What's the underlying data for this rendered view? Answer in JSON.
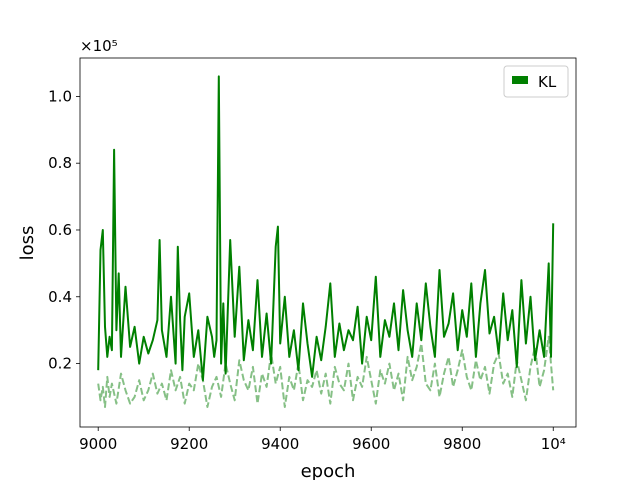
{
  "chart_data": {
    "type": "line",
    "xlabel": "epoch",
    "ylabel": "loss",
    "y_multiplier": "×10⁵",
    "xlim": [
      8960,
      10050
    ],
    "ylim": [
      0.01,
      1.115
    ],
    "x_ticks": [
      {
        "value": 9000,
        "label": "9000"
      },
      {
        "value": 9200,
        "label": "9200"
      },
      {
        "value": 9400,
        "label": "9400"
      },
      {
        "value": 9600,
        "label": "9600"
      },
      {
        "value": 9800,
        "label": "9800"
      },
      {
        "value": 10000,
        "label": "10⁴"
      }
    ],
    "y_ticks": [
      {
        "value": 0.2,
        "label": "0.2"
      },
      {
        "value": 0.4,
        "label": "0.4"
      },
      {
        "value": 0.6,
        "label": "0.6"
      },
      {
        "value": 0.8,
        "label": "0.8"
      },
      {
        "value": 1.0,
        "label": "1.0"
      }
    ],
    "legend": {
      "position": "top-right",
      "entries": [
        "KL"
      ]
    },
    "colors": {
      "primary": "#008000",
      "secondary": "#86c086"
    },
    "series": [
      {
        "name": "KL",
        "style": "solid",
        "x": [
          9000,
          9005,
          9010,
          9015,
          9020,
          9025,
          9030,
          9035,
          9040,
          9045,
          9050,
          9060,
          9070,
          9080,
          9090,
          9100,
          9110,
          9120,
          9130,
          9135,
          9140,
          9150,
          9160,
          9170,
          9175,
          9180,
          9185,
          9190,
          9200,
          9210,
          9220,
          9230,
          9240,
          9250,
          9255,
          9260,
          9265,
          9270,
          9275,
          9280,
          9290,
          9300,
          9310,
          9320,
          9330,
          9340,
          9350,
          9360,
          9370,
          9380,
          9390,
          9395,
          9400,
          9410,
          9420,
          9430,
          9440,
          9450,
          9460,
          9470,
          9480,
          9490,
          9500,
          9510,
          9520,
          9530,
          9540,
          9550,
          9560,
          9570,
          9580,
          9590,
          9600,
          9610,
          9620,
          9630,
          9640,
          9650,
          9660,
          9670,
          9680,
          9690,
          9700,
          9710,
          9720,
          9730,
          9740,
          9750,
          9760,
          9770,
          9780,
          9790,
          9800,
          9810,
          9820,
          9830,
          9840,
          9850,
          9860,
          9870,
          9880,
          9890,
          9900,
          9910,
          9920,
          9930,
          9940,
          9950,
          9960,
          9970,
          9980,
          9990,
          9995,
          10000
        ],
        "y": [
          0.18,
          0.54,
          0.6,
          0.31,
          0.22,
          0.28,
          0.24,
          0.84,
          0.3,
          0.47,
          0.22,
          0.43,
          0.25,
          0.31,
          0.2,
          0.28,
          0.23,
          0.27,
          0.33,
          0.57,
          0.3,
          0.22,
          0.4,
          0.2,
          0.55,
          0.33,
          0.18,
          0.34,
          0.41,
          0.22,
          0.3,
          0.15,
          0.34,
          0.28,
          0.22,
          0.27,
          1.06,
          0.2,
          0.38,
          0.17,
          0.57,
          0.28,
          0.49,
          0.21,
          0.33,
          0.24,
          0.45,
          0.22,
          0.35,
          0.2,
          0.55,
          0.61,
          0.26,
          0.4,
          0.22,
          0.3,
          0.18,
          0.38,
          0.26,
          0.16,
          0.28,
          0.21,
          0.31,
          0.44,
          0.22,
          0.32,
          0.24,
          0.3,
          0.27,
          0.37,
          0.2,
          0.34,
          0.27,
          0.46,
          0.22,
          0.33,
          0.28,
          0.38,
          0.24,
          0.42,
          0.3,
          0.22,
          0.38,
          0.27,
          0.44,
          0.31,
          0.22,
          0.48,
          0.28,
          0.32,
          0.41,
          0.24,
          0.36,
          0.28,
          0.44,
          0.22,
          0.38,
          0.48,
          0.29,
          0.34,
          0.23,
          0.41,
          0.27,
          0.36,
          0.19,
          0.45,
          0.26,
          0.4,
          0.21,
          0.3,
          0.22,
          0.5,
          0.22,
          0.62
        ]
      },
      {
        "name": "",
        "style": "dashed",
        "x": [
          9000,
          9005,
          9010,
          9015,
          9020,
          9025,
          9030,
          9040,
          9050,
          9060,
          9070,
          9080,
          9090,
          9100,
          9110,
          9120,
          9130,
          9140,
          9150,
          9160,
          9170,
          9180,
          9190,
          9200,
          9210,
          9220,
          9230,
          9240,
          9250,
          9260,
          9270,
          9280,
          9290,
          9300,
          9310,
          9320,
          9330,
          9340,
          9350,
          9360,
          9370,
          9380,
          9390,
          9400,
          9410,
          9420,
          9430,
          9440,
          9450,
          9460,
          9470,
          9480,
          9490,
          9500,
          9510,
          9520,
          9530,
          9540,
          9550,
          9560,
          9570,
          9580,
          9590,
          9600,
          9610,
          9620,
          9630,
          9640,
          9650,
          9660,
          9670,
          9680,
          9690,
          9700,
          9710,
          9720,
          9730,
          9740,
          9750,
          9760,
          9770,
          9780,
          9790,
          9800,
          9810,
          9820,
          9830,
          9840,
          9850,
          9860,
          9870,
          9880,
          9890,
          9900,
          9910,
          9920,
          9930,
          9940,
          9950,
          9960,
          9970,
          9980,
          9990,
          10000
        ],
        "y": [
          0.14,
          0.09,
          0.13,
          0.07,
          0.16,
          0.1,
          0.14,
          0.08,
          0.17,
          0.12,
          0.08,
          0.1,
          0.15,
          0.09,
          0.12,
          0.17,
          0.11,
          0.14,
          0.09,
          0.18,
          0.12,
          0.16,
          0.08,
          0.14,
          0.12,
          0.2,
          0.15,
          0.07,
          0.13,
          0.16,
          0.1,
          0.2,
          0.14,
          0.09,
          0.21,
          0.15,
          0.12,
          0.19,
          0.08,
          0.17,
          0.13,
          0.23,
          0.14,
          0.19,
          0.07,
          0.16,
          0.12,
          0.2,
          0.09,
          0.15,
          0.13,
          0.18,
          0.11,
          0.17,
          0.08,
          0.19,
          0.14,
          0.12,
          0.2,
          0.09,
          0.16,
          0.13,
          0.22,
          0.15,
          0.08,
          0.18,
          0.14,
          0.2,
          0.12,
          0.17,
          0.09,
          0.22,
          0.15,
          0.19,
          0.26,
          0.14,
          0.12,
          0.2,
          0.1,
          0.17,
          0.22,
          0.13,
          0.18,
          0.24,
          0.16,
          0.12,
          0.21,
          0.15,
          0.19,
          0.11,
          0.2,
          0.23,
          0.14,
          0.17,
          0.1,
          0.21,
          0.15,
          0.09,
          0.19,
          0.25,
          0.13,
          0.18,
          0.28,
          0.12
        ]
      }
    ]
  }
}
